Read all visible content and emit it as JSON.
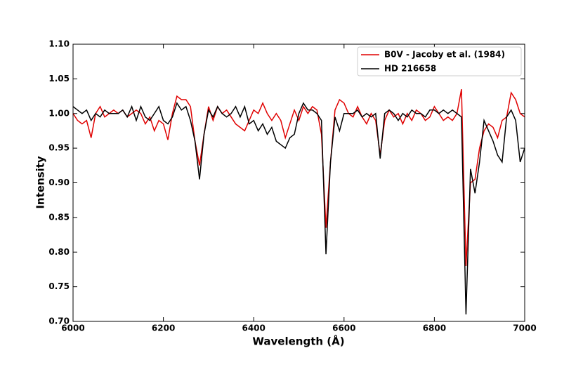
{
  "chart_data": {
    "type": "line",
    "xlabel": "Wavelength (Å)",
    "ylabel": "Intensity",
    "x": [
      6000,
      6010,
      6020,
      6030,
      6040,
      6050,
      6060,
      6070,
      6080,
      6090,
      6100,
      6110,
      6120,
      6130,
      6140,
      6150,
      6160,
      6170,
      6180,
      6190,
      6200,
      6210,
      6220,
      6230,
      6240,
      6250,
      6260,
      6270,
      6280,
      6290,
      6300,
      6310,
      6320,
      6330,
      6340,
      6350,
      6360,
      6370,
      6380,
      6390,
      6400,
      6410,
      6420,
      6430,
      6440,
      6450,
      6460,
      6470,
      6480,
      6490,
      6500,
      6510,
      6520,
      6530,
      6540,
      6550,
      6560,
      6570,
      6580,
      6590,
      6600,
      6610,
      6620,
      6630,
      6640,
      6650,
      6660,
      6670,
      6680,
      6690,
      6700,
      6710,
      6720,
      6730,
      6740,
      6750,
      6760,
      6770,
      6780,
      6790,
      6800,
      6810,
      6820,
      6830,
      6840,
      6850,
      6860,
      6870,
      6880,
      6890,
      6900,
      6910,
      6920,
      6930,
      6940,
      6950,
      6960,
      6970,
      6980,
      6990,
      7000
    ],
    "series": [
      {
        "name": "B0V - Jacoby et al. (1984)",
        "color": "#e00000",
        "values": [
          1.0,
          0.99,
          0.985,
          0.99,
          0.965,
          1.0,
          1.01,
          0.995,
          1.0,
          1.005,
          1.0,
          1.005,
          0.995,
          1.0,
          1.005,
          1.0,
          0.985,
          0.995,
          0.975,
          0.99,
          0.985,
          0.962,
          1.0,
          1.025,
          1.02,
          1.02,
          1.01,
          0.96,
          0.925,
          0.97,
          1.01,
          0.99,
          1.01,
          1.0,
          1.005,
          0.995,
          0.985,
          0.98,
          0.975,
          0.99,
          1.005,
          1.0,
          1.015,
          1.0,
          0.99,
          1.0,
          0.99,
          0.965,
          0.985,
          1.005,
          0.99,
          1.01,
          1.0,
          1.01,
          1.005,
          0.97,
          0.835,
          0.93,
          1.005,
          1.02,
          1.015,
          1.0,
          0.995,
          1.01,
          0.995,
          0.985,
          1.0,
          0.99,
          0.94,
          0.99,
          1.005,
          0.995,
          1.0,
          0.985,
          1.0,
          0.99,
          1.005,
          1.0,
          0.99,
          0.995,
          1.01,
          1.0,
          0.99,
          0.995,
          0.99,
          1.0,
          1.035,
          0.78,
          0.9,
          0.905,
          0.95,
          0.975,
          0.985,
          0.98,
          0.965,
          0.99,
          0.995,
          1.03,
          1.02,
          1.0,
          0.995
        ]
      },
      {
        "name": "HD 216658",
        "color": "#000000",
        "values": [
          1.01,
          1.005,
          1.0,
          1.005,
          0.99,
          1.0,
          0.995,
          1.005,
          1.0,
          1.0,
          1.0,
          1.005,
          0.995,
          1.01,
          0.99,
          1.01,
          0.995,
          0.99,
          1.0,
          1.01,
          0.99,
          0.985,
          0.995,
          1.015,
          1.005,
          1.01,
          0.99,
          0.96,
          0.905,
          0.97,
          1.005,
          0.995,
          1.01,
          1.0,
          0.995,
          1.0,
          1.01,
          0.995,
          1.01,
          0.985,
          0.99,
          0.975,
          0.985,
          0.97,
          0.98,
          0.96,
          0.955,
          0.95,
          0.965,
          0.97,
          1.0,
          1.015,
          1.005,
          1.005,
          1.0,
          0.99,
          0.797,
          0.93,
          0.995,
          0.975,
          1.0,
          1.0,
          1.0,
          1.005,
          0.995,
          1.0,
          0.995,
          1.0,
          0.935,
          1.0,
          1.005,
          1.0,
          0.99,
          1.0,
          0.995,
          1.005,
          1.0,
          1.0,
          0.995,
          1.005,
          1.005,
          1.0,
          1.005,
          1.0,
          1.005,
          1.0,
          0.995,
          0.71,
          0.92,
          0.885,
          0.93,
          0.99,
          0.975,
          0.96,
          0.94,
          0.93,
          0.995,
          1.005,
          0.99,
          0.93,
          0.95
        ]
      }
    ],
    "xlim": [
      6000,
      7000
    ],
    "xticks": [
      6000,
      6200,
      6400,
      6600,
      6800,
      7000
    ],
    "ylim": [
      0.7,
      1.1
    ],
    "yticks": [
      {
        "value": 0.7,
        "label": "0.70"
      },
      {
        "value": 0.75,
        "label": "0.75"
      },
      {
        "value": 0.8,
        "label": "0.80"
      },
      {
        "value": 0.85,
        "label": "0.85"
      },
      {
        "value": 0.9,
        "label": "0.90"
      },
      {
        "value": 0.95,
        "label": "0.95"
      },
      {
        "value": 1.0,
        "label": "1.00"
      },
      {
        "value": 1.05,
        "label": "1.05"
      },
      {
        "value": 1.1,
        "label": "1.10"
      }
    ],
    "legend": "upper right",
    "grid": false
  }
}
